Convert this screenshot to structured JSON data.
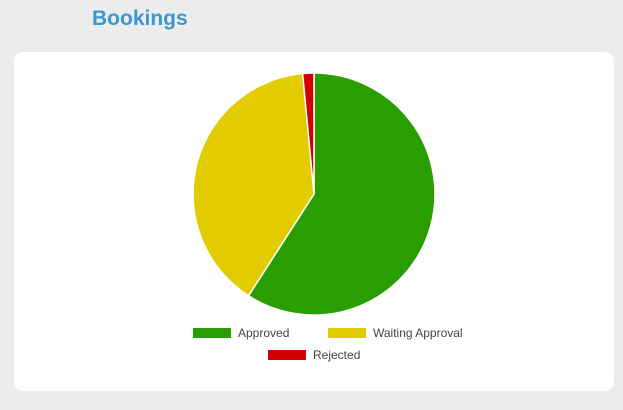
{
  "header": {
    "title": "Bookings"
  },
  "chart_data": {
    "type": "pie",
    "title": "",
    "categories": [
      "Approved",
      "Waiting Approval",
      "Rejected"
    ],
    "values": [
      59.1,
      39.4,
      1.5
    ],
    "colors": [
      "#2a9e00",
      "#e2cb00",
      "#d20000"
    ],
    "slice_border_color": "#ffffff",
    "start_angle": "top, clockwise",
    "legend": {
      "placement": "bottom-center",
      "entries": [
        {
          "label": "Approved",
          "color": "#2a9e00"
        },
        {
          "label": "Waiting Approval",
          "color": "#e2cb00"
        },
        {
          "label": "Rejected",
          "color": "#d20000"
        }
      ]
    }
  }
}
